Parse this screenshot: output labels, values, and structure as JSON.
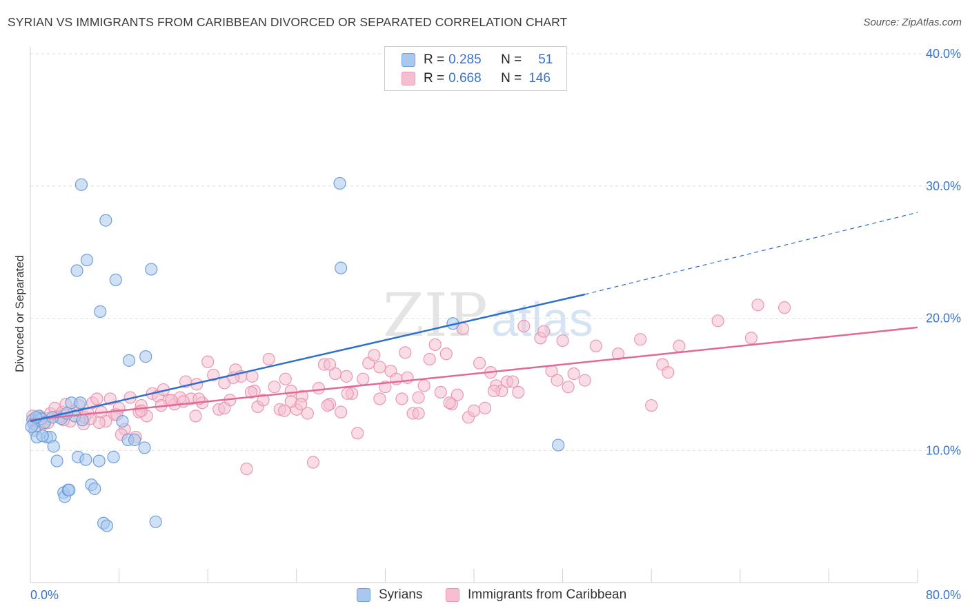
{
  "title": "SYRIAN VS IMMIGRANTS FROM CARIBBEAN DIVORCED OR SEPARATED CORRELATION CHART",
  "source": "Source: ZipAtlas.com",
  "watermark": {
    "zip": "ZIP",
    "atlas": "atlas"
  },
  "colors": {
    "blue_fill": "#aac8ef",
    "blue_stroke": "#6f9fd8",
    "blue_line": "#2f6fcc",
    "pink_fill": "#f6bfd0",
    "pink_stroke": "#e897b2",
    "pink_line": "#e26896",
    "tick_text": "#3a73c7",
    "grid": "#dddddd"
  },
  "legend": {
    "rows": [
      {
        "r_label": "R =",
        "r_value": "0.285",
        "n_label": "N =",
        "n_value": "51"
      },
      {
        "r_label": "R =",
        "r_value": "0.668",
        "n_label": "N =",
        "n_value": "146"
      }
    ]
  },
  "bottom_legend": {
    "syrians": "Syrians",
    "caribbean": "Immigrants from Caribbean"
  },
  "chart_data": {
    "type": "scatter",
    "xlabel": "",
    "ylabel": "Divorced or Separated",
    "xlim": [
      0,
      80
    ],
    "ylim": [
      0,
      40
    ],
    "x_tick_labels": {
      "min": "0.0%",
      "max": "80.0%"
    },
    "y_tick_labels": [
      "10.0%",
      "20.0%",
      "30.0%",
      "40.0%"
    ],
    "y_ticks": [
      10,
      20,
      30,
      40
    ],
    "grid": true,
    "legend_position": "top-center",
    "series": [
      {
        "name": "Syrians",
        "color": "blue",
        "trend": {
          "x0": 0,
          "y0": 12.2,
          "x1": 50,
          "y1": 21.8,
          "dashed_to_x": 80,
          "dashed_to_y": 28.0
        },
        "points": [
          [
            0.2,
            12.3
          ],
          [
            0.3,
            12.0
          ],
          [
            0.4,
            11.5
          ],
          [
            0.6,
            11.0
          ],
          [
            0.8,
            12.6
          ],
          [
            1.0,
            12.4
          ],
          [
            1.3,
            12.1
          ],
          [
            1.5,
            11.0
          ],
          [
            1.8,
            11.0
          ],
          [
            2.1,
            10.3
          ],
          [
            2.4,
            9.2
          ],
          [
            2.8,
            12.4
          ],
          [
            3.0,
            6.8
          ],
          [
            3.1,
            6.5
          ],
          [
            3.4,
            7.0
          ],
          [
            3.5,
            7.0
          ],
          [
            3.7,
            13.6
          ],
          [
            4.0,
            12.6
          ],
          [
            4.3,
            9.5
          ],
          [
            4.5,
            13.6
          ],
          [
            4.7,
            12.3
          ],
          [
            5.0,
            9.3
          ],
          [
            5.5,
            7.4
          ],
          [
            5.8,
            7.1
          ],
          [
            6.2,
            9.2
          ],
          [
            6.6,
            4.5
          ],
          [
            6.9,
            4.3
          ],
          [
            7.5,
            9.5
          ],
          [
            8.3,
            12.2
          ],
          [
            8.8,
            10.8
          ],
          [
            4.6,
            30.1
          ],
          [
            6.8,
            27.4
          ],
          [
            5.1,
            24.4
          ],
          [
            4.2,
            23.6
          ],
          [
            7.7,
            22.9
          ],
          [
            10.9,
            23.7
          ],
          [
            6.3,
            20.5
          ],
          [
            8.9,
            16.8
          ],
          [
            10.4,
            17.1
          ],
          [
            10.3,
            10.2
          ],
          [
            11.3,
            4.6
          ],
          [
            9.4,
            10.8
          ],
          [
            27.9,
            30.2
          ],
          [
            28.0,
            23.8
          ],
          [
            38.1,
            19.6
          ],
          [
            47.6,
            10.4
          ],
          [
            0.1,
            11.8
          ],
          [
            0.5,
            12.5
          ],
          [
            1.1,
            11.1
          ],
          [
            2.0,
            12.5
          ],
          [
            3.3,
            12.8
          ]
        ]
      },
      {
        "name": "Immigrants from Caribbean",
        "color": "pink",
        "trend": {
          "x0": 0,
          "y0": 12.3,
          "x1": 80,
          "y1": 19.3
        },
        "points": [
          [
            0.2,
            12.6
          ],
          [
            0.4,
            12.2
          ],
          [
            0.6,
            11.8
          ],
          [
            0.9,
            12.5
          ],
          [
            1.2,
            12.0
          ],
          [
            1.5,
            12.4
          ],
          [
            1.8,
            12.8
          ],
          [
            2.2,
            13.2
          ],
          [
            2.5,
            12.6
          ],
          [
            2.9,
            12.9
          ],
          [
            3.2,
            13.5
          ],
          [
            3.6,
            12.2
          ],
          [
            4.0,
            13.0
          ],
          [
            4.4,
            13.4
          ],
          [
            4.8,
            12.0
          ],
          [
            5.2,
            12.8
          ],
          [
            5.6,
            13.6
          ],
          [
            6.0,
            13.9
          ],
          [
            6.4,
            12.9
          ],
          [
            6.8,
            12.2
          ],
          [
            7.2,
            13.9
          ],
          [
            7.6,
            12.7
          ],
          [
            8.0,
            13.2
          ],
          [
            8.5,
            11.6
          ],
          [
            9.0,
            14.0
          ],
          [
            9.5,
            11.0
          ],
          [
            10.0,
            13.4
          ],
          [
            10.5,
            12.6
          ],
          [
            11.0,
            14.3
          ],
          [
            11.5,
            14.1
          ],
          [
            12.0,
            14.6
          ],
          [
            12.5,
            13.8
          ],
          [
            13.0,
            13.5
          ],
          [
            13.5,
            14.0
          ],
          [
            14.0,
            15.2
          ],
          [
            14.5,
            13.9
          ],
          [
            15.0,
            15.0
          ],
          [
            15.5,
            13.6
          ],
          [
            16.0,
            16.7
          ],
          [
            16.5,
            15.7
          ],
          [
            17.0,
            13.1
          ],
          [
            17.5,
            15.1
          ],
          [
            18.0,
            13.8
          ],
          [
            18.5,
            16.1
          ],
          [
            19.0,
            15.6
          ],
          [
            19.5,
            8.6
          ],
          [
            20.0,
            15.6
          ],
          [
            20.5,
            13.3
          ],
          [
            21.0,
            13.8
          ],
          [
            21.5,
            16.9
          ],
          [
            22.0,
            14.8
          ],
          [
            22.5,
            13.1
          ],
          [
            23.0,
            15.4
          ],
          [
            23.5,
            14.5
          ],
          [
            24.0,
            13.1
          ],
          [
            24.5,
            14.1
          ],
          [
            25.0,
            12.8
          ],
          [
            25.5,
            9.1
          ],
          [
            26.0,
            14.7
          ],
          [
            26.5,
            16.5
          ],
          [
            27.0,
            13.5
          ],
          [
            27.5,
            15.8
          ],
          [
            28.0,
            12.9
          ],
          [
            28.5,
            15.6
          ],
          [
            29.0,
            14.3
          ],
          [
            29.5,
            11.3
          ],
          [
            30.0,
            15.4
          ],
          [
            30.5,
            16.6
          ],
          [
            31.0,
            17.2
          ],
          [
            31.5,
            16.3
          ],
          [
            32.0,
            14.8
          ],
          [
            32.5,
            16.0
          ],
          [
            33.0,
            15.4
          ],
          [
            33.5,
            13.9
          ],
          [
            34.0,
            15.5
          ],
          [
            34.5,
            12.8
          ],
          [
            35.0,
            14.0
          ],
          [
            35.5,
            14.9
          ],
          [
            36.0,
            16.9
          ],
          [
            36.5,
            18.0
          ],
          [
            37.0,
            14.4
          ],
          [
            37.5,
            17.3
          ],
          [
            38.0,
            13.5
          ],
          [
            38.5,
            14.2
          ],
          [
            39.0,
            19.2
          ],
          [
            39.5,
            12.5
          ],
          [
            40.0,
            13.0
          ],
          [
            40.5,
            16.6
          ],
          [
            41.0,
            13.2
          ],
          [
            41.5,
            15.9
          ],
          [
            42.0,
            14.9
          ],
          [
            42.5,
            14.5
          ],
          [
            43.0,
            15.2
          ],
          [
            43.5,
            15.2
          ],
          [
            44.0,
            14.4
          ],
          [
            44.5,
            19.4
          ],
          [
            46.0,
            18.5
          ],
          [
            47.0,
            16.0
          ],
          [
            47.5,
            15.3
          ],
          [
            48.0,
            18.3
          ],
          [
            48.5,
            14.8
          ],
          [
            49.0,
            15.8
          ],
          [
            50.0,
            15.3
          ],
          [
            51.0,
            17.9
          ],
          [
            53.0,
            17.3
          ],
          [
            55.0,
            18.4
          ],
          [
            56.0,
            13.4
          ],
          [
            57.0,
            16.5
          ],
          [
            57.5,
            15.9
          ],
          [
            58.5,
            17.9
          ],
          [
            62.0,
            19.8
          ],
          [
            65.0,
            18.5
          ],
          [
            65.6,
            21.0
          ],
          [
            68.0,
            20.8
          ],
          [
            46.3,
            19.0
          ],
          [
            33.8,
            17.4
          ],
          [
            27.0,
            16.5
          ],
          [
            23.5,
            13.7
          ],
          [
            20.2,
            14.5
          ],
          [
            18.3,
            15.5
          ],
          [
            15.2,
            13.9
          ],
          [
            12.7,
            13.8
          ],
          [
            9.8,
            12.9
          ],
          [
            8.2,
            11.2
          ],
          [
            6.2,
            12.1
          ],
          [
            4.9,
            12.5
          ],
          [
            3.0,
            12.3
          ],
          [
            1.6,
            12.1
          ],
          [
            0.8,
            12.3
          ],
          [
            13.8,
            13.7
          ],
          [
            22.9,
            13.0
          ],
          [
            31.5,
            13.9
          ],
          [
            37.8,
            13.6
          ],
          [
            41.8,
            14.5
          ],
          [
            14.9,
            12.6
          ],
          [
            24.4,
            13.5
          ],
          [
            17.5,
            13.2
          ],
          [
            26.8,
            13.4
          ],
          [
            35.0,
            12.8
          ],
          [
            11.8,
            13.4
          ],
          [
            10.0,
            13.0
          ],
          [
            7.8,
            12.7
          ],
          [
            5.4,
            12.4
          ],
          [
            2.6,
            12.5
          ],
          [
            28.6,
            14.3
          ],
          [
            19.9,
            14.4
          ]
        ]
      }
    ]
  }
}
